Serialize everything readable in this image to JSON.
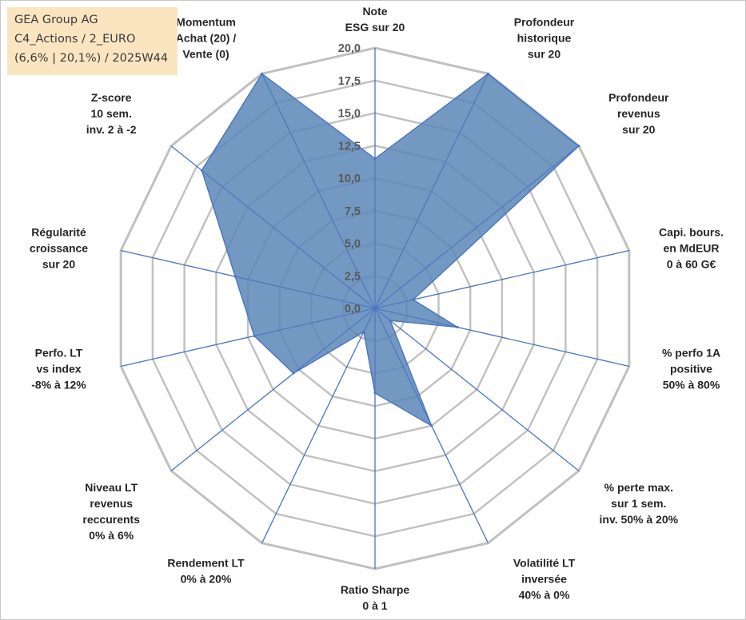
{
  "info": {
    "company": "GEA Group AG",
    "portfolio": "C4_Actions / 2_EURO",
    "period": "(6,6% | 20,1%) / 2025W44"
  },
  "colors": {
    "fill": "#5b86b7",
    "stroke": "#4a74c4",
    "grid": "#c0c0c0",
    "info_bg": "#fbe5c1"
  },
  "chart_data": {
    "type": "radar",
    "r_min": 0,
    "r_max": 20,
    "tick_labels": [
      "0,0",
      "2,5",
      "5,0",
      "7,5",
      "10,0",
      "12,5",
      "15,0",
      "17,5",
      "20,0"
    ],
    "ticks": [
      0,
      2.5,
      5,
      7.5,
      10,
      12.5,
      15,
      17.5,
      20
    ],
    "grid": true,
    "axes": [
      {
        "label": [
          "Note",
          "ESG sur 20"
        ],
        "value": 11.5
      },
      {
        "label": [
          "Profondeur",
          "historique",
          "sur 20"
        ],
        "value": 20
      },
      {
        "label": [
          "Profondeur",
          "revenus",
          "sur 20"
        ],
        "value": 20
      },
      {
        "label": [
          "Capi. bours.",
          "en MdEUR",
          "0 à 60 G€"
        ],
        "value": 3
      },
      {
        "label": [
          "% perfo 1A",
          "positive",
          "50% à 80%"
        ],
        "value": 6.5
      },
      {
        "label": [
          "% perte max.",
          "sur 1 sem.",
          "inv. 50% à 20%"
        ],
        "value": 1.5
      },
      {
        "label": [
          "Volatilité LT",
          "inversée",
          "40% à 0%"
        ],
        "value": 10
      },
      {
        "label": [
          "Ratio Sharpe",
          "0 à 1"
        ],
        "value": 6.5
      },
      {
        "label": [
          "Rendement LT",
          "0% à 20%"
        ],
        "value": 2
      },
      {
        "label": [
          "Niveau LT",
          "revenus",
          "reccurents",
          "0% à 6%"
        ],
        "value": 8
      },
      {
        "label": [
          "Perfo. LT",
          "vs index",
          "-8% à 12%"
        ],
        "value": 9.5
      },
      {
        "label": [
          "Régularité",
          "croissance",
          "sur 20"
        ],
        "value": 11
      },
      {
        "label": [
          "Z-score",
          "10 sem.",
          "inv. 2 à -2"
        ],
        "value": 17
      },
      {
        "label": [
          "Momentum",
          "Achat (20) /",
          "Vente (0)"
        ],
        "value": 20
      }
    ]
  }
}
